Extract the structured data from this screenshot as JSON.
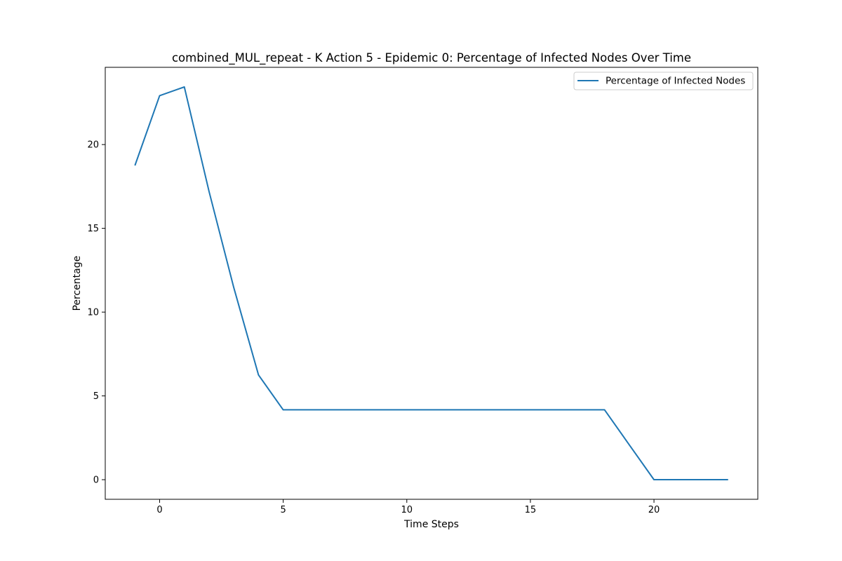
{
  "chart_data": {
    "type": "line",
    "title": "combined_MUL_repeat - K Action 5 - Epidemic 0: Percentage of Infected Nodes Over Time",
    "xlabel": "Time Steps",
    "ylabel": "Percentage",
    "x": [
      -1,
      0,
      1,
      2,
      3,
      4,
      5,
      6,
      7,
      8,
      9,
      10,
      11,
      12,
      13,
      14,
      15,
      16,
      17,
      18,
      19,
      20,
      21,
      22,
      23
    ],
    "series": [
      {
        "name": "Percentage of Infected Nodes",
        "color": "#1f77b4",
        "values": [
          18.75,
          22.92,
          23.44,
          17.19,
          11.46,
          6.25,
          4.17,
          4.17,
          4.17,
          4.17,
          4.17,
          4.17,
          4.17,
          4.17,
          4.17,
          4.17,
          4.17,
          4.17,
          4.17,
          4.17,
          2.08,
          0.0,
          0.0,
          0.0,
          0.0
        ]
      }
    ],
    "xlim": [
      -2.2,
      24.2
    ],
    "ylim": [
      -1.17,
      24.61
    ],
    "xticks": [
      "0",
      "5",
      "10",
      "15",
      "20"
    ],
    "xtick_values": [
      0,
      5,
      10,
      15,
      20
    ],
    "yticks": [
      "0",
      "5",
      "10",
      "15",
      "20"
    ],
    "ytick_values": [
      0,
      5,
      10,
      15,
      20
    ],
    "grid": false,
    "legend_position": "top-right"
  }
}
